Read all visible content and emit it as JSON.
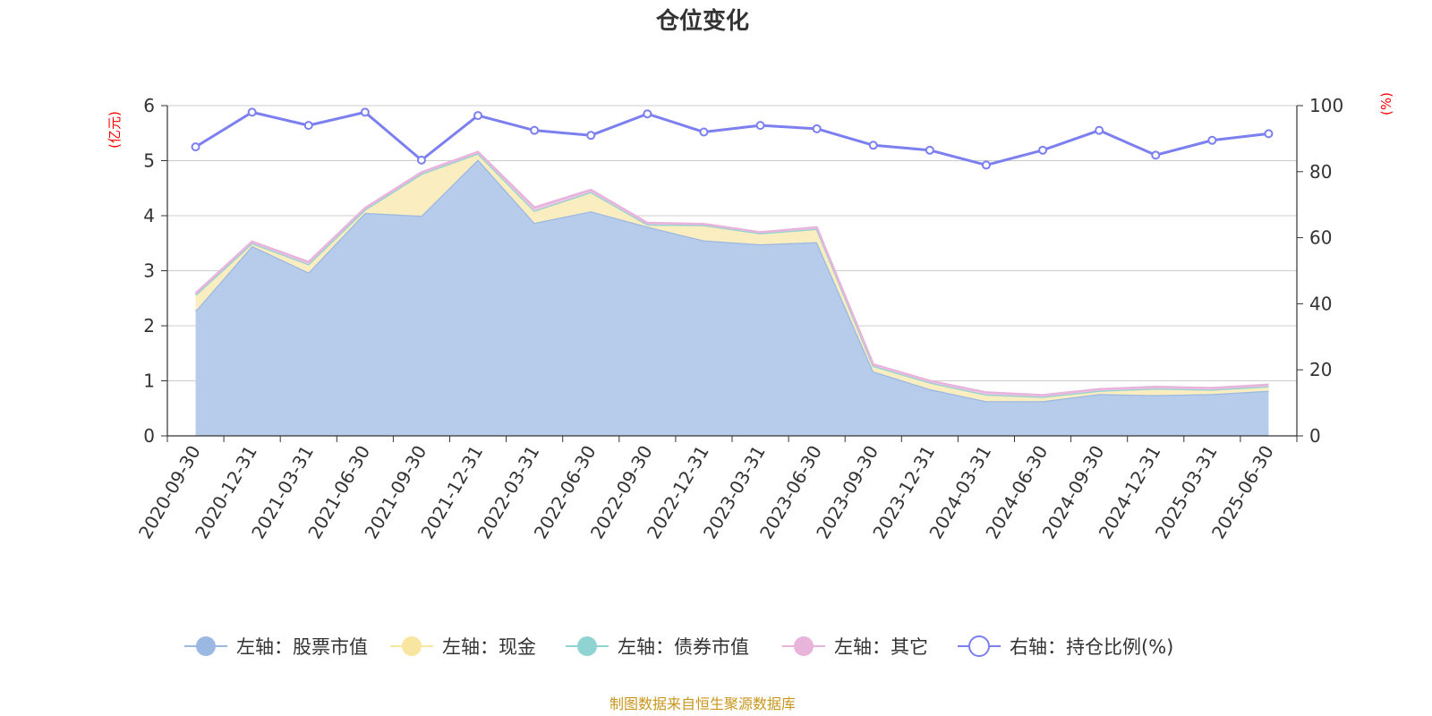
{
  "chart_data": {
    "type": "area",
    "title": "仓位变化",
    "left_axis_unit": "(亿元)",
    "right_axis_unit": "(%)",
    "y_left_range": [
      0,
      6
    ],
    "y_left_ticks": [
      "0",
      "1",
      "2",
      "3",
      "4",
      "5",
      "6"
    ],
    "y_right_range": [
      0,
      100
    ],
    "y_right_ticks": [
      "0",
      "20",
      "40",
      "60",
      "80",
      "100"
    ],
    "grid": true,
    "legend_position": "bottom",
    "categories": [
      "2020-09-30",
      "2020-12-31",
      "2021-03-31",
      "2021-06-30",
      "2021-09-30",
      "2021-12-31",
      "2022-03-31",
      "2022-06-30",
      "2022-09-30",
      "2022-12-31",
      "2023-03-31",
      "2023-06-30",
      "2023-09-30",
      "2023-12-31",
      "2024-03-31",
      "2024-06-30",
      "2024-09-30",
      "2024-12-31",
      "2025-03-31",
      "2025-06-30"
    ],
    "series": [
      {
        "name": "左轴：股票市值",
        "axis": "left",
        "kind": "stacked-area",
        "color": "#9bb8e2",
        "fill": "#b7cceb",
        "values": [
          2.27,
          3.45,
          2.97,
          4.05,
          4.0,
          5.02,
          3.87,
          4.08,
          3.8,
          3.55,
          3.48,
          3.52,
          1.17,
          0.85,
          0.63,
          0.63,
          0.76,
          0.74,
          0.76,
          0.82
        ]
      },
      {
        "name": "左轴：现金",
        "axis": "left",
        "kind": "stacked-area",
        "color": "#f8e5a0",
        "fill": "#faedbf",
        "values": [
          0.29,
          0.05,
          0.15,
          0.06,
          0.76,
          0.11,
          0.22,
          0.35,
          0.04,
          0.28,
          0.2,
          0.24,
          0.1,
          0.12,
          0.12,
          0.08,
          0.06,
          0.12,
          0.08,
          0.08
        ]
      },
      {
        "name": "左轴：债券市值",
        "axis": "left",
        "kind": "stacked-area",
        "color": "#8fd3d3",
        "fill": "#a8dede",
        "values": [
          0,
          0,
          0,
          0,
          0,
          0,
          0,
          0,
          0,
          0,
          0,
          0,
          0,
          0,
          0,
          0,
          0,
          0,
          0,
          0
        ]
      },
      {
        "name": "左轴：其它",
        "axis": "left",
        "kind": "stacked-area",
        "color": "#e8b4dc",
        "fill": "#efc6e6",
        "values": [
          0.03,
          0.03,
          0.04,
          0.03,
          0.03,
          0.03,
          0.06,
          0.04,
          0.03,
          0.02,
          0.02,
          0.03,
          0.03,
          0.03,
          0.04,
          0.03,
          0.03,
          0.03,
          0.03,
          0.03
        ]
      },
      {
        "name": "右轴：持仓比例(%)",
        "axis": "right",
        "kind": "line",
        "color": "#7b7ff0",
        "values": [
          87.5,
          98.0,
          94.0,
          98.0,
          83.5,
          97.0,
          92.5,
          91.0,
          97.5,
          92.0,
          94.0,
          93.0,
          88.0,
          86.5,
          82.0,
          86.5,
          92.5,
          85.0,
          89.5,
          91.5
        ]
      }
    ]
  },
  "footer": {
    "source": "制图数据来自恒生聚源数据库"
  }
}
